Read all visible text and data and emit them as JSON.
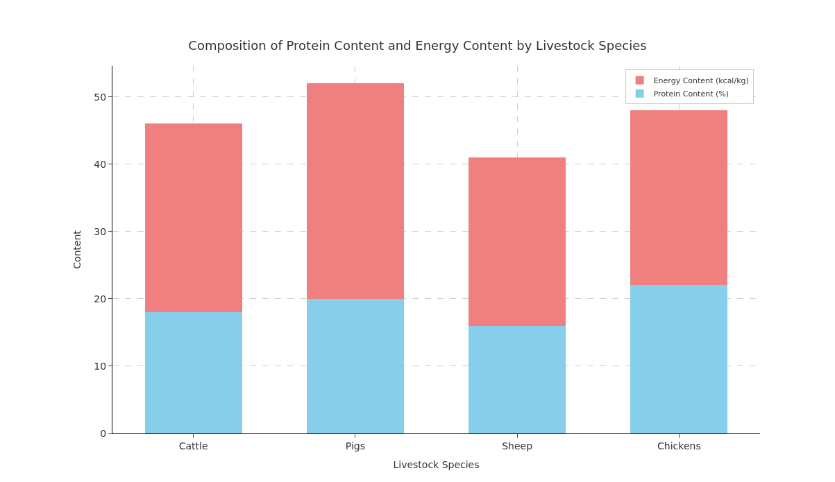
{
  "chart_data": {
    "type": "bar",
    "title": "Composition of Protein Content and Energy Content by Livestock Species",
    "xlabel": "Livestock Species",
    "ylabel": "Content",
    "categories": [
      "Cattle",
      "Pigs",
      "Sheep",
      "Chickens"
    ],
    "series": [
      {
        "name": "Protein Content (%)",
        "color": "#87ceeb",
        "values": [
          18,
          20,
          16,
          22
        ]
      },
      {
        "name": "Energy Content (kcal/kg)",
        "color": "#f08080",
        "values": [
          28,
          32,
          25,
          26
        ]
      }
    ],
    "stacked": true,
    "ylim": [
      0,
      54.6
    ],
    "yticks": [
      0,
      10,
      20,
      30,
      40,
      50
    ],
    "grid": true,
    "legend": "top right"
  }
}
